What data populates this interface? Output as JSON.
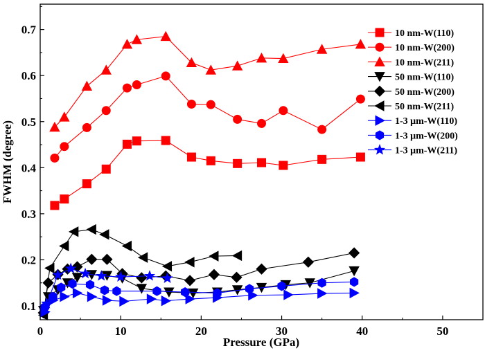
{
  "chart_data": {
    "type": "line",
    "title": "",
    "xlabel": "Pressure (GPa)",
    "ylabel": "FWHM (degree)",
    "xlim": [
      0,
      55
    ],
    "ylim": [
      0.07,
      0.755
    ],
    "x_ticks": [
      0,
      10,
      20,
      30,
      40,
      50
    ],
    "x_tick_labels": [
      "0",
      "10",
      "20",
      "30",
      "40",
      "50"
    ],
    "y_ticks": [
      0.1,
      0.2,
      0.3,
      0.4,
      0.5,
      0.6,
      0.7
    ],
    "y_tick_labels": [
      "0.1",
      "0.2",
      "0.3",
      "0.4",
      "0.5",
      "0.6",
      "0.7"
    ],
    "grid": false,
    "legend_position": "right",
    "colors": {
      "red": "#ff0000",
      "black": "#000000",
      "blue": "#0000ff"
    },
    "series": [
      {
        "name": "10 nm-W(110)",
        "marker": "square",
        "color": "#ff0000",
        "x": [
          1.8,
          3.0,
          5.8,
          8.2,
          10.8,
          12.0,
          15.6,
          18.8,
          21.2,
          24.5,
          27.5,
          30.2,
          35.0,
          39.8
        ],
        "y": [
          0.318,
          0.332,
          0.365,
          0.397,
          0.451,
          0.458,
          0.459,
          0.423,
          0.415,
          0.409,
          0.411,
          0.405,
          0.418,
          0.423
        ]
      },
      {
        "name": "10 nm-W(200)",
        "marker": "circle",
        "color": "#ff0000",
        "x": [
          1.8,
          3.0,
          5.8,
          8.2,
          10.8,
          12.0,
          15.6,
          18.8,
          21.2,
          24.5,
          27.5,
          30.2,
          35.0,
          39.8
        ],
        "y": [
          0.421,
          0.446,
          0.487,
          0.524,
          0.573,
          0.58,
          0.599,
          0.538,
          0.537,
          0.505,
          0.496,
          0.524,
          0.483,
          0.549
        ]
      },
      {
        "name": "10 nm-W(211)",
        "marker": "triangle-up",
        "color": "#ff0000",
        "x": [
          1.8,
          3.0,
          5.8,
          8.2,
          10.8,
          12.0,
          15.6,
          18.8,
          21.2,
          24.5,
          27.5,
          30.2,
          35.0,
          39.8
        ],
        "y": [
          0.488,
          0.51,
          0.577,
          0.612,
          0.668,
          0.678,
          0.685,
          0.628,
          0.612,
          0.621,
          0.638,
          0.637,
          0.657,
          0.668
        ]
      },
      {
        "name": "50 nm-W(110)",
        "marker": "triangle-down",
        "color": "#000000",
        "x": [
          0.4,
          1.0,
          2.2,
          3.4,
          4.6,
          6.4,
          8.3,
          10.2,
          12.6,
          16.0,
          19.0,
          22.0,
          24.5,
          27.5,
          30.5,
          33.5,
          39.0
        ],
        "y": [
          0.09,
          0.12,
          0.135,
          0.15,
          0.162,
          0.168,
          0.166,
          0.16,
          0.138,
          0.13,
          0.128,
          0.13,
          0.135,
          0.14,
          0.146,
          0.15,
          0.176
        ]
      },
      {
        "name": "50 nm-W(200)",
        "marker": "diamond",
        "color": "#000000",
        "x": [
          0.4,
          1.0,
          2.2,
          3.4,
          4.6,
          6.4,
          8.3,
          10.2,
          12.6,
          15.6,
          18.6,
          21.6,
          24.4,
          27.5,
          33.3,
          39.0
        ],
        "y": [
          0.085,
          0.15,
          0.168,
          0.18,
          0.185,
          0.201,
          0.201,
          0.17,
          0.161,
          0.165,
          0.155,
          0.168,
          0.162,
          0.18,
          0.195,
          0.215
        ]
      },
      {
        "name": "50 nm-W(211)",
        "marker": "triangle-left",
        "color": "#000000",
        "x": [
          0.4,
          1.2,
          3.0,
          4.2,
          6.4,
          8.0,
          10.8,
          12.8,
          15.8,
          18.6,
          21.6,
          24.5
        ],
        "y": [
          0.08,
          0.182,
          0.23,
          0.261,
          0.266,
          0.255,
          0.23,
          0.205,
          0.186,
          0.195,
          0.208,
          0.209
        ]
      },
      {
        "name": "1-3 μm-W(110)",
        "marker": "triangle-right",
        "color": "#0000ff",
        "x": [
          0.6,
          1.6,
          3.0,
          4.6,
          6.4,
          8.3,
          10.4,
          13.8,
          15.6,
          18.6,
          22.0,
          26.4,
          30.8,
          35.0,
          39.0
        ],
        "y": [
          0.087,
          0.112,
          0.12,
          0.128,
          0.12,
          0.112,
          0.11,
          0.115,
          0.111,
          0.115,
          0.118,
          0.123,
          0.124,
          0.127,
          0.128
        ]
      },
      {
        "name": "1-3 μm-W(200)",
        "marker": "hexagon",
        "color": "#0000ff",
        "x": [
          0.6,
          1.6,
          2.6,
          4.0,
          6.2,
          8.0,
          9.5,
          14.5,
          18.0,
          22.0,
          26.0,
          30.0,
          35.0,
          39.0
        ],
        "y": [
          0.098,
          0.12,
          0.14,
          0.148,
          0.146,
          0.134,
          0.132,
          0.132,
          0.13,
          0.128,
          0.137,
          0.143,
          0.15,
          0.152
        ]
      },
      {
        "name": "1-3 μm-W(211)",
        "marker": "star",
        "color": "#0000ff",
        "x": [
          0.8,
          2.2,
          3.8,
          5.6,
          7.6,
          10.0,
          13.6,
          15.8
        ],
        "y": [
          0.105,
          0.167,
          0.181,
          0.17,
          0.165,
          0.163,
          0.165,
          0.16
        ]
      }
    ]
  }
}
